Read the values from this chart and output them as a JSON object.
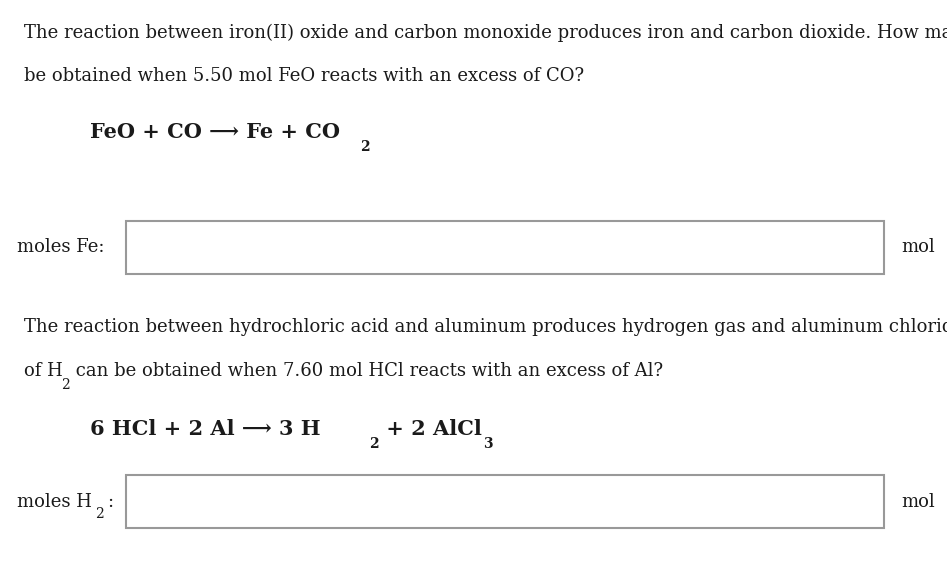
{
  "bg_color": "#ffffff",
  "text_color": "#1a1a1a",
  "box_edge_color": "#999999",
  "paragraph1_line1": "The reaction between iron(II) oxide and carbon monoxide produces iron and carbon dioxide. How many moles of iron can",
  "paragraph1_line2": "be obtained when 5.50 mol FeO reacts with an excess of CO?",
  "label1": "moles Fe:",
  "unit1": "mol",
  "paragraph2_line1": "The reaction between hydrochloric acid and aluminum produces hydrogen gas and aluminum chloride. How many moles",
  "paragraph2_line2a": "of H",
  "paragraph2_line2b": "2",
  "paragraph2_line2c": " can be obtained when 7.60 mol HCl reacts with an excess of Al?",
  "label2a": "moles H",
  "label2b": "2",
  "label2c": ":",
  "unit2": "mol",
  "font_size_body": 13,
  "font_size_eq": 15,
  "font_size_sub": 10
}
